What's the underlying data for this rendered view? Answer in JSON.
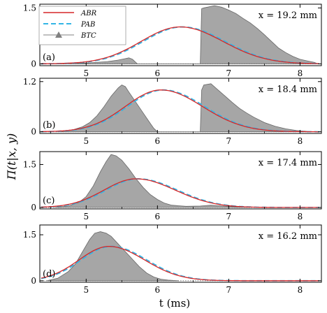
{
  "figure": {
    "ylabel": "Π(t|x, y)",
    "xlabel": "t (ms)"
  },
  "legend": {
    "entries": [
      {
        "label": "ABR",
        "color": "#d62728",
        "style": "solid"
      },
      {
        "label": "PAB",
        "color": "#33b5e5",
        "style": "dashed"
      },
      {
        "label": "BTC",
        "color": "#808080",
        "style": "marker-triangle"
      }
    ]
  },
  "colors": {
    "abr": "#d62728",
    "pab": "#33b5e5",
    "btc_fill": "#a6a6a6",
    "btc_line": "#666666"
  },
  "chart_data": [
    {
      "type": "area",
      "panel_label": "(a)",
      "annotation": "x = 19.2 mm",
      "xlim": [
        4.35,
        8.3
      ],
      "ylim": [
        -0.05,
        1.6
      ],
      "yticks": [
        0,
        1.5
      ],
      "xticks": [
        5,
        6,
        7,
        8
      ],
      "abr_peak": {
        "t": 6.32,
        "y": 0.99,
        "sigma_left": 0.55,
        "sigma_right": 0.6
      },
      "btc": {
        "t": [
          4.5,
          5.0,
          5.3,
          5.45,
          5.55,
          5.6,
          5.65,
          5.7,
          5.72,
          6.6,
          6.62,
          6.65,
          6.7,
          6.8,
          6.9,
          7.0,
          7.1,
          7.2,
          7.3,
          7.4,
          7.5,
          7.6,
          7.7,
          7.8,
          7.9,
          8.0,
          8.1,
          8.2,
          8.25
        ],
        "y": [
          0.0,
          0.02,
          0.06,
          0.1,
          0.14,
          0.16,
          0.12,
          0.03,
          0.0,
          0.0,
          1.48,
          1.5,
          1.52,
          1.56,
          1.52,
          1.44,
          1.35,
          1.22,
          1.1,
          0.95,
          0.78,
          0.6,
          0.42,
          0.3,
          0.2,
          0.12,
          0.08,
          0.04,
          0.0
        ]
      }
    },
    {
      "type": "area",
      "panel_label": "(b)",
      "annotation": "x = 18.4 mm",
      "xlim": [
        4.35,
        8.3
      ],
      "ylim": [
        -0.04,
        1.28
      ],
      "yticks": [
        0,
        1.2
      ],
      "xticks": [
        5,
        6,
        7,
        8
      ],
      "abr_peak": {
        "t": 6.05,
        "y": 1.0,
        "sigma_left": 0.5,
        "sigma_right": 0.58
      },
      "btc": {
        "t": [
          4.6,
          4.8,
          4.95,
          5.05,
          5.15,
          5.25,
          5.35,
          5.45,
          5.5,
          5.55,
          5.6,
          5.7,
          5.8,
          5.9,
          5.95,
          6.0,
          6.6,
          6.62,
          6.65,
          6.75,
          6.85,
          6.95,
          7.05,
          7.15,
          7.25,
          7.35,
          7.5,
          7.65,
          7.8,
          7.95,
          8.1,
          8.2
        ],
        "y": [
          0.0,
          0.04,
          0.12,
          0.22,
          0.38,
          0.6,
          0.85,
          1.05,
          1.12,
          1.08,
          0.95,
          0.7,
          0.45,
          0.2,
          0.08,
          0.0,
          0.0,
          1.0,
          1.12,
          1.15,
          1.0,
          0.85,
          0.7,
          0.56,
          0.45,
          0.35,
          0.22,
          0.13,
          0.07,
          0.03,
          0.01,
          0.0
        ]
      }
    },
    {
      "type": "area",
      "panel_label": "(c)",
      "annotation": "x = 17.4 mm",
      "xlim": [
        4.35,
        8.3
      ],
      "ylim": [
        -0.05,
        1.95
      ],
      "yticks": [
        0,
        1.5
      ],
      "xticks": [
        5,
        6,
        7,
        8
      ],
      "abr_peak": {
        "t": 5.7,
        "y": 1.0,
        "sigma_left": 0.45,
        "sigma_right": 0.55
      },
      "btc": {
        "t": [
          4.55,
          4.75,
          4.9,
          5.0,
          5.1,
          5.2,
          5.28,
          5.35,
          5.42,
          5.5,
          5.6,
          5.7,
          5.8,
          5.9,
          6.0,
          6.1,
          6.2,
          6.4,
          6.6,
          6.75,
          6.9,
          7.1,
          7.3
        ],
        "y": [
          0.0,
          0.05,
          0.18,
          0.38,
          0.75,
          1.25,
          1.6,
          1.85,
          1.8,
          1.65,
          1.35,
          1.0,
          0.7,
          0.45,
          0.28,
          0.15,
          0.08,
          0.04,
          0.05,
          0.08,
          0.05,
          0.02,
          0.0
        ]
      }
    },
    {
      "type": "area",
      "panel_label": "(d)",
      "annotation": "x = 16.2 mm",
      "xlim": [
        4.35,
        8.3
      ],
      "ylim": [
        -0.05,
        1.82
      ],
      "yticks": [
        0,
        1.5
      ],
      "xticks": [
        5,
        6,
        7,
        8
      ],
      "abr_peak": {
        "t": 5.32,
        "y": 1.12,
        "sigma_left": 0.42,
        "sigma_right": 0.5
      },
      "btc": {
        "t": [
          4.45,
          4.6,
          4.75,
          4.85,
          4.95,
          5.05,
          5.12,
          5.2,
          5.28,
          5.35,
          5.45,
          5.55,
          5.65,
          5.75,
          5.85,
          5.95,
          6.05,
          6.15,
          6.3
        ],
        "y": [
          0.0,
          0.08,
          0.3,
          0.55,
          0.95,
          1.35,
          1.55,
          1.6,
          1.55,
          1.45,
          1.2,
          0.95,
          0.7,
          0.45,
          0.25,
          0.12,
          0.05,
          0.02,
          0.0
        ]
      }
    }
  ]
}
